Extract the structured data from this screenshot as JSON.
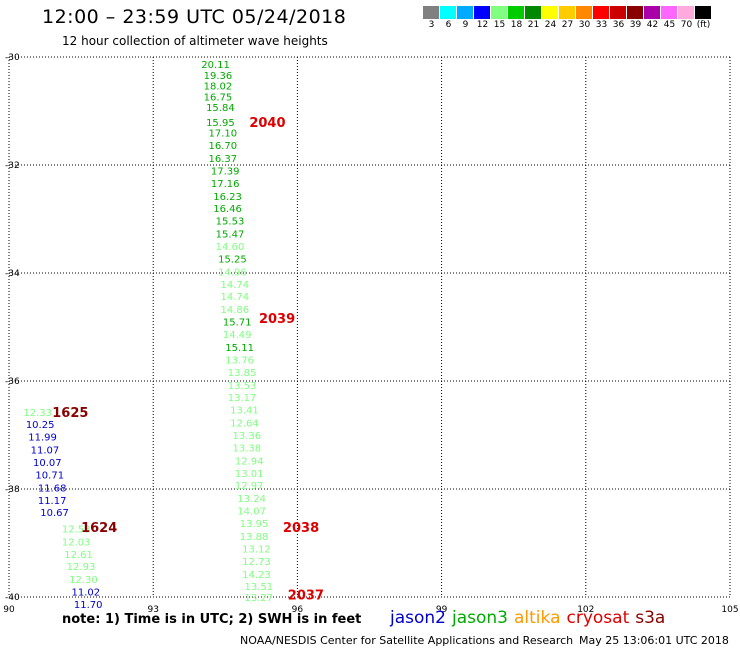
{
  "header": {
    "title": "12:00 – 23:59 UTC 05/24/2018",
    "subtitle": "12 hour collection of altimeter wave heights"
  },
  "color_scale": {
    "labels": [
      "3",
      "6",
      "9",
      "12",
      "15",
      "18",
      "21",
      "24",
      "27",
      "30",
      "33",
      "36",
      "39",
      "42",
      "45",
      "70",
      "(ft)"
    ],
    "colors": [
      "#808080",
      "#00ffff",
      "#00aaff",
      "#0000ff",
      "#80ff80",
      "#00cc00",
      "#008800",
      "#ffff00",
      "#ffcc00",
      "#ff8800",
      "#ff0000",
      "#cc0000",
      "#880000",
      "#aa00aa",
      "#ff66ff",
      "#ffaadd",
      "#000000"
    ]
  },
  "footer": {
    "note": "note:  1) Time is in UTC;  2) SWH is in feet",
    "credit": "NOAA/NESDIS Center for Satellite Applications and Research",
    "timestamp": "May 25 13:06:01 UTC 2018"
  },
  "legend": [
    {
      "name": "jason2",
      "color": "#0000cc"
    },
    {
      "name": "jason3",
      "color": "#00aa00"
    },
    {
      "name": "altika",
      "color": "#ff9900"
    },
    {
      "name": "cryosat",
      "color": "#dd0000"
    },
    {
      "name": "s3a",
      "color": "#880000"
    }
  ],
  "chart_data": {
    "type": "scatter",
    "title": "12:00 – 23:59 UTC 05/24/2018",
    "subtitle": "12 hour collection of altimeter wave heights",
    "xlim": [
      90,
      105
    ],
    "ylim": [
      -40,
      -30
    ],
    "x_ticks": [
      "90",
      "93",
      "96",
      "99",
      "102",
      "105"
    ],
    "y_ticks": [
      "-30",
      "-32",
      "-34",
      "-36",
      "-38",
      "-40"
    ],
    "grid": true,
    "units": "ft",
    "tracks": [
      {
        "label": "2040",
        "label_color": "#dd0000",
        "label_x": 95.0,
        "label_y": -31.2
      },
      {
        "label": "2039",
        "label_color": "#dd0000",
        "label_x": 95.2,
        "label_y": -34.83
      },
      {
        "label": "1625",
        "label_color": "#880000",
        "label_x": 90.9,
        "label_y": -36.57
      },
      {
        "label": "1624",
        "label_color": "#880000",
        "label_x": 91.5,
        "label_y": -38.7
      },
      {
        "label": "2038",
        "label_color": "#dd0000",
        "label_x": 95.7,
        "label_y": -38.7
      },
      {
        "label": "2037",
        "label_color": "#dd0000",
        "label_x": 95.8,
        "label_y": -39.95
      }
    ],
    "series": [
      {
        "name": "altika",
        "satellite_color": "#00aa00",
        "points": [
          {
            "x": 94.0,
            "y": -30.13,
            "v": "20.11",
            "c": "#00aa00"
          },
          {
            "x": 94.05,
            "y": -30.33,
            "v": "19.36",
            "c": "#00aa00"
          },
          {
            "x": 94.05,
            "y": -30.53,
            "v": "18.02",
            "c": "#00aa00"
          },
          {
            "x": 94.05,
            "y": -30.73,
            "v": "16.75",
            "c": "#00aa00"
          },
          {
            "x": 94.1,
            "y": -30.93,
            "v": "15.84",
            "c": "#00aa00"
          },
          {
            "x": 94.1,
            "y": -31.2,
            "v": "15.95",
            "c": "#00aa00"
          },
          {
            "x": 94.15,
            "y": -31.4,
            "v": "17.10",
            "c": "#00aa00"
          },
          {
            "x": 94.15,
            "y": -31.63,
            "v": "16.70",
            "c": "#00aa00"
          },
          {
            "x": 94.15,
            "y": -31.87,
            "v": "16.37",
            "c": "#00aa00"
          },
          {
            "x": 94.2,
            "y": -32.1,
            "v": "17.39",
            "c": "#00aa00"
          },
          {
            "x": 94.2,
            "y": -32.33,
            "v": "17.16",
            "c": "#00aa00"
          },
          {
            "x": 94.25,
            "y": -32.57,
            "v": "16.23",
            "c": "#00aa00"
          },
          {
            "x": 94.25,
            "y": -32.8,
            "v": "16.46",
            "c": "#00aa00"
          },
          {
            "x": 94.3,
            "y": -33.03,
            "v": "15.53",
            "c": "#00aa00"
          },
          {
            "x": 94.3,
            "y": -33.27,
            "v": "15.47",
            "c": "#00aa00"
          },
          {
            "x": 94.3,
            "y": -33.5,
            "v": "14.60",
            "c": "#80ff80"
          },
          {
            "x": 94.35,
            "y": -33.73,
            "v": "15.25",
            "c": "#00aa00"
          },
          {
            "x": 94.35,
            "y": -33.97,
            "v": "14.96",
            "c": "#80ff80"
          },
          {
            "x": 94.4,
            "y": -34.2,
            "v": "14.74",
            "c": "#80ff80"
          },
          {
            "x": 94.4,
            "y": -34.43,
            "v": "14.74",
            "c": "#80ff80"
          },
          {
            "x": 94.4,
            "y": -34.67,
            "v": "14.86",
            "c": "#80ff80"
          },
          {
            "x": 94.45,
            "y": -34.9,
            "v": "15.71",
            "c": "#00aa00"
          },
          {
            "x": 94.45,
            "y": -35.13,
            "v": "14.49",
            "c": "#80ff80"
          },
          {
            "x": 94.5,
            "y": -35.37,
            "v": "15.11",
            "c": "#00aa00"
          },
          {
            "x": 94.5,
            "y": -35.6,
            "v": "13.76",
            "c": "#80ff80"
          },
          {
            "x": 94.55,
            "y": -35.83,
            "v": "13.85",
            "c": "#80ff80"
          },
          {
            "x": 94.55,
            "y": -36.07,
            "v": "13.53",
            "c": "#80ff80"
          },
          {
            "x": 94.55,
            "y": -36.3,
            "v": "13.17",
            "c": "#80ff80"
          },
          {
            "x": 94.6,
            "y": -36.53,
            "v": "13.41",
            "c": "#80ff80"
          },
          {
            "x": 94.6,
            "y": -36.77,
            "v": "12.64",
            "c": "#80ff80"
          },
          {
            "x": 94.65,
            "y": -37.0,
            "v": "13.36",
            "c": "#80ff80"
          },
          {
            "x": 94.65,
            "y": -37.23,
            "v": "13.38",
            "c": "#80ff80"
          },
          {
            "x": 94.7,
            "y": -37.47,
            "v": "12.94",
            "c": "#80ff80"
          },
          {
            "x": 94.7,
            "y": -37.7,
            "v": "13.01",
            "c": "#80ff80"
          },
          {
            "x": 94.7,
            "y": -37.93,
            "v": "12.97",
            "c": "#80ff80"
          },
          {
            "x": 94.75,
            "y": -38.17,
            "v": "13.24",
            "c": "#80ff80"
          },
          {
            "x": 94.75,
            "y": -38.4,
            "v": "14.07",
            "c": "#80ff80"
          },
          {
            "x": 94.8,
            "y": -38.63,
            "v": "13.95",
            "c": "#80ff80"
          },
          {
            "x": 94.8,
            "y": -38.87,
            "v": "13.88",
            "c": "#80ff80"
          },
          {
            "x": 94.85,
            "y": -39.1,
            "v": "13.12",
            "c": "#80ff80"
          },
          {
            "x": 94.85,
            "y": -39.33,
            "v": "12.73",
            "c": "#80ff80"
          },
          {
            "x": 94.85,
            "y": -39.57,
            "v": "14.23",
            "c": "#80ff80"
          },
          {
            "x": 94.9,
            "y": -39.8,
            "v": "13.51",
            "c": "#80ff80"
          },
          {
            "x": 94.9,
            "y": -40.0,
            "v": "13.27",
            "c": "#80ff80"
          }
        ]
      },
      {
        "name": "jason3",
        "points": [
          {
            "x": 90.3,
            "y": -36.57,
            "v": "12.33",
            "c": "#80ff80"
          },
          {
            "x": 91.1,
            "y": -38.73,
            "v": "12.53",
            "c": "#80ff80"
          },
          {
            "x": 91.1,
            "y": -38.97,
            "v": "12.03",
            "c": "#80ff80"
          },
          {
            "x": 91.15,
            "y": -39.2,
            "v": "12.61",
            "c": "#80ff80"
          },
          {
            "x": 91.2,
            "y": -39.43,
            "v": "12.93",
            "c": "#80ff80"
          },
          {
            "x": 91.25,
            "y": -39.67,
            "v": "12.30",
            "c": "#80ff80"
          }
        ]
      },
      {
        "name": "jason2",
        "points": [
          {
            "x": 90.35,
            "y": -36.8,
            "v": "10.25",
            "c": "#0000cc"
          },
          {
            "x": 90.4,
            "y": -37.03,
            "v": "11.99",
            "c": "#0000cc"
          },
          {
            "x": 90.45,
            "y": -37.27,
            "v": "11.07",
            "c": "#0000cc"
          },
          {
            "x": 90.5,
            "y": -37.5,
            "v": "10.07",
            "c": "#0000cc"
          },
          {
            "x": 90.55,
            "y": -37.73,
            "v": "10.71",
            "c": "#0000cc"
          },
          {
            "x": 90.6,
            "y": -37.97,
            "v": "11.68",
            "c": "#0000cc"
          },
          {
            "x": 90.6,
            "y": -38.2,
            "v": "11.17",
            "c": "#0000cc"
          },
          {
            "x": 90.65,
            "y": -38.43,
            "v": "10.67",
            "c": "#0000cc"
          },
          {
            "x": 91.3,
            "y": -39.9,
            "v": "11.02",
            "c": "#0000cc"
          },
          {
            "x": 91.35,
            "y": -40.13,
            "v": "11.70",
            "c": "#0000cc"
          }
        ]
      }
    ]
  }
}
